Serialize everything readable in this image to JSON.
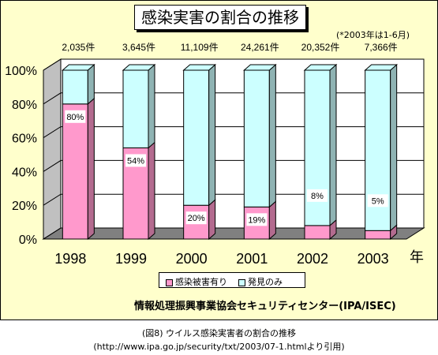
{
  "chart_data": {
    "type": "bar",
    "stacked": true,
    "title": "感染実害の割合の推移",
    "note": "(*2003年は1-6月)",
    "categories": [
      "1998",
      "1999",
      "2000",
      "2001",
      "2002",
      "2003"
    ],
    "x_unit": "年",
    "counts": [
      "2,035件",
      "3,645件",
      "11,109件",
      "24,261件",
      "20,352件",
      "7,366件"
    ],
    "series": [
      {
        "name": "感染被害有り",
        "values": [
          80,
          54,
          20,
          19,
          8,
          5
        ],
        "color": "#ff99cc"
      },
      {
        "name": "発見のみ",
        "values": [
          20,
          46,
          80,
          81,
          92,
          95
        ],
        "color": "#ccffff"
      }
    ],
    "data_labels": [
      "80%",
      "54%",
      "20%",
      "19%",
      "8%",
      "5%"
    ],
    "y_ticks": [
      "0%",
      "20%",
      "40%",
      "60%",
      "80%",
      "100%"
    ],
    "ylim": [
      0,
      100
    ],
    "legend_position": "bottom",
    "gridlines": true
  },
  "credit": "情報処理振興事業協会セキュリティセンター(IPA/ISEC)",
  "caption": {
    "line1": "(図8) ウイルス感染実害者の割合の推移",
    "line2": "(http://www.ipa.go.jp/security/txt/2003/07-1.htmlより引用)"
  }
}
